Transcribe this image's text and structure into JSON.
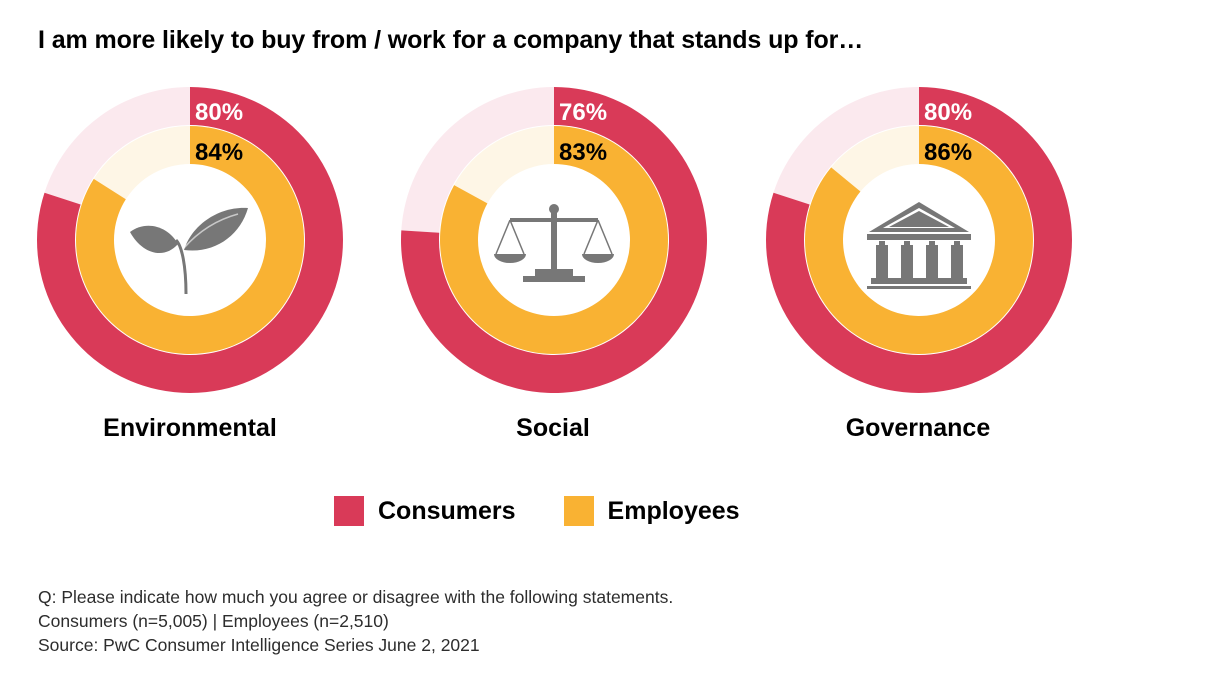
{
  "title": "I am more likely to buy from / work for a company that stands up for…",
  "colors": {
    "consumers": "#d93a58",
    "consumers_track": "#fbe9ee",
    "employees": "#f9b233",
    "employees_track": "#fef6e6",
    "icon": "#777777"
  },
  "chart_data": {
    "type": "pie",
    "subtype": "nested-donut",
    "title": "I am more likely to buy from / work for a company that stands up for…",
    "series_names": [
      "Consumers",
      "Employees"
    ],
    "charts": [
      {
        "label": "Environmental",
        "icon": "plant-icon",
        "consumers": 80,
        "employees": 84
      },
      {
        "label": "Social",
        "icon": "scales-icon",
        "consumers": 76,
        "employees": 83
      },
      {
        "label": "Governance",
        "icon": "government-building-icon",
        "consumers": 80,
        "employees": 86
      }
    ],
    "unit": "%"
  },
  "legend": {
    "items": [
      {
        "label": "Consumers",
        "color": "#d93a58"
      },
      {
        "label": "Employees",
        "color": "#f9b233"
      }
    ],
    "position": "bottom-center"
  },
  "notes": {
    "question": "Q: Please indicate how much you agree or disagree with the following statements.",
    "sample": "Consumers (n=5,005) | Employees (n=2,510)",
    "source": "Source: PwC Consumer Intelligence Series June 2, 2021"
  }
}
